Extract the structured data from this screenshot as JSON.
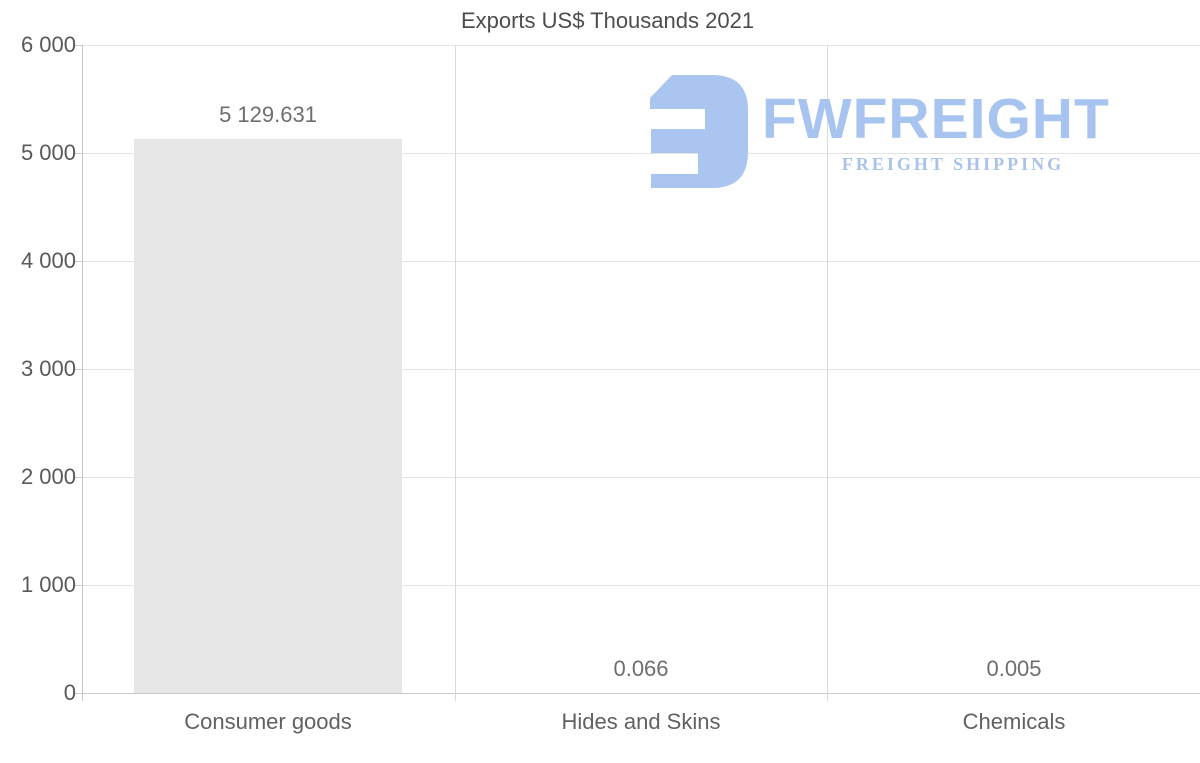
{
  "title": "Exports US$ Thousands 2021",
  "logo": {
    "wordmark": "FWFREIGHT",
    "tagline": "FREIGHT SHIPPING",
    "icon": "fwfreight-glyph",
    "icon_color": "#aac5f0",
    "wordmark_color": "#a7c4f0",
    "tagline_color": "#a9c2ea"
  },
  "chart_data": {
    "type": "bar",
    "title": "Exports US$ Thousands 2021",
    "categories": [
      "Consumer goods",
      "Hides and Skins",
      "Chemicals"
    ],
    "values": [
      5129.631,
      0.066,
      0.005
    ],
    "value_labels": [
      "5 129.631",
      "0.066",
      "0.005"
    ],
    "xlabel": "",
    "ylabel": "",
    "ylim": [
      0,
      6000
    ],
    "ytick_interval": 1000,
    "yticks": [
      0,
      1000,
      2000,
      3000,
      4000,
      5000,
      6000
    ],
    "ytick_labels": [
      "0",
      "1 000",
      "2 000",
      "3 000",
      "4 000",
      "5 000",
      "6 000"
    ],
    "grid": "horizontal lines at each y tick, vertical lines at category boundaries",
    "legend": "none",
    "bar_color": "#e6e6e6",
    "label_color": "#6e6e6e",
    "axis_label_color": "#595959"
  }
}
